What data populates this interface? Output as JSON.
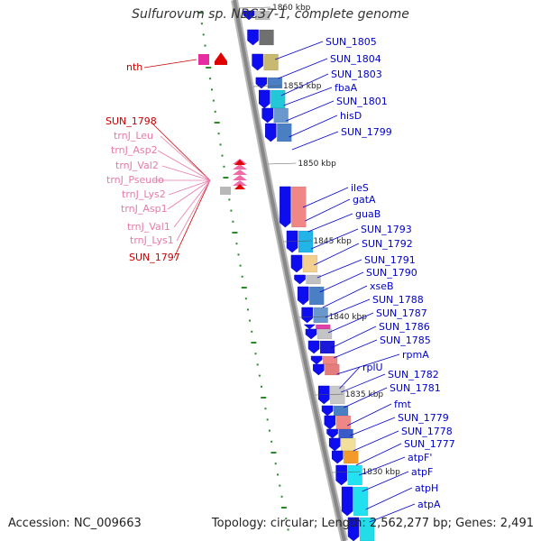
{
  "title": "Sulfurovum sp. NBC37-1, complete genome",
  "footer": {
    "accession": "Accession: NC_009663",
    "summary": "Topology: circular; Length: 2,562,277 bp; Genes: 2,491"
  },
  "colors": {
    "forward_gene_label": "#0000cc",
    "reverse_gene_label": "#cc0000",
    "rna_label": "#e87aa8",
    "backbone": "#888888",
    "tick": "#2a8a2a"
  },
  "kbp_marks": [
    "1860 kbp",
    "1855 kbp",
    "1850 kbp",
    "1845 kbp",
    "1840 kbp",
    "1835 kbp",
    "1830 kbp"
  ],
  "right_labels": [
    "SUN_1805",
    "SUN_1804",
    "SUN_1803",
    "fbaA",
    "SUN_1801",
    "hisD",
    "SUN_1799",
    "ileS",
    "gatA",
    "guaB",
    "SUN_1793",
    "SUN_1792",
    "SUN_1791",
    "SUN_1790",
    "xseB",
    "SUN_1788",
    "SUN_1787",
    "SUN_1786",
    "SUN_1785",
    "rpmA",
    "rplU",
    "SUN_1782",
    "SUN_1781",
    "fmt",
    "SUN_1779",
    "SUN_1778",
    "SUN_1777",
    "atpF'",
    "atpF",
    "atpH",
    "atpA"
  ],
  "left_labels": {
    "top": "nth",
    "reverse": [
      "SUN_1798",
      "SUN_1797"
    ],
    "rna": [
      "trnJ_Leu",
      "trnJ_Asp2",
      "trnJ_Val2",
      "trnJ_Pseudo",
      "trnJ_Lys2",
      "trnJ_Asp1",
      "trnJ_Val1",
      "trnJ_Lys1"
    ]
  }
}
